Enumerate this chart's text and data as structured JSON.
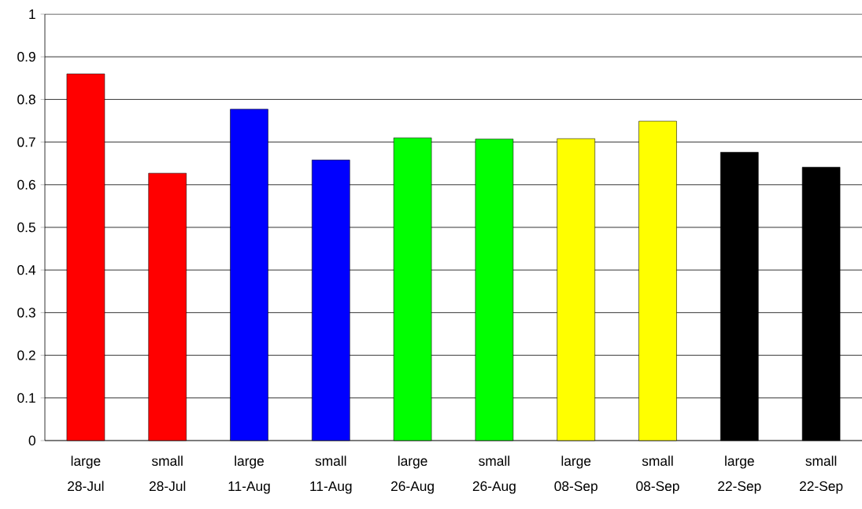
{
  "chart_data": {
    "type": "bar",
    "categories": [
      "large 28-Jul",
      "small 28-Jul",
      "large 11-Aug",
      "small 11-Aug",
      "large 26-Aug",
      "small 26-Aug",
      "large 08-Sep",
      "small 08-Sep",
      "large 22-Sep",
      "small 22-Sep"
    ],
    "values": [
      0.86,
      0.627,
      0.777,
      0.658,
      0.71,
      0.707,
      0.708,
      0.749,
      0.676,
      0.641
    ],
    "colors": [
      "#ff0000",
      "#ff0000",
      "#0000ff",
      "#0000ff",
      "#00ff00",
      "#00ff00",
      "#ffff00",
      "#ffff00",
      "#000000",
      "#000000"
    ],
    "ylim": [
      0,
      1
    ],
    "yticks": [
      0,
      0.1,
      0.2,
      0.3,
      0.4,
      0.5,
      0.6,
      0.7,
      0.8,
      0.9,
      1
    ],
    "grid": "y"
  }
}
